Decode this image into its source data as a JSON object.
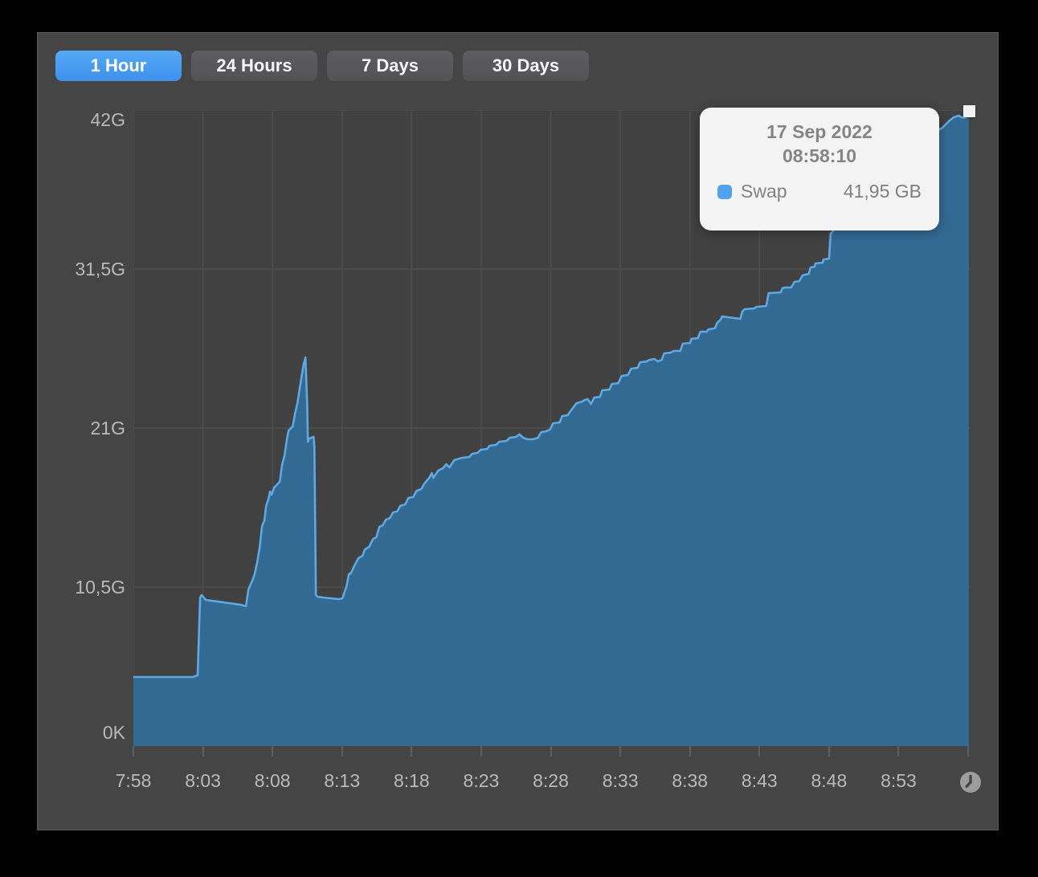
{
  "window": {
    "outer_background": "#000000",
    "panel_background": "#454545",
    "plot_background": "#414141",
    "gridline_color": "#4f4f4f",
    "axis_text_color": "#b9b9b9",
    "accent_blue": "#4da1f0",
    "marker_color": "#f2f2f2"
  },
  "tabs": [
    {
      "label": "1 Hour",
      "active": true
    },
    {
      "label": "24 Hours",
      "active": false
    },
    {
      "label": "7 Days",
      "active": false
    },
    {
      "label": "30 Days",
      "active": false
    }
  ],
  "tooltip": {
    "date": "17 Sep 2022",
    "time": "08:58:10",
    "series_label": "Swap",
    "value": "41,95 GB",
    "swatch_color": "#4fa3ee"
  },
  "footer": {
    "clock_icon": "clock-icon"
  },
  "chart_data": {
    "type": "area",
    "series": [
      {
        "name": "Swap",
        "unit": "GB",
        "line_color": "#5ea9e2",
        "fill_color": "#336a94",
        "points": [
          [
            0,
            4.56
          ],
          [
            2,
            4.56
          ],
          [
            4.28,
            4.56
          ],
          [
            4.62,
            4.67
          ],
          [
            4.8,
            9.81
          ],
          [
            4.91,
            9.97
          ],
          [
            5.2,
            9.65
          ],
          [
            6.01,
            9.55
          ],
          [
            6.88,
            9.44
          ],
          [
            7.75,
            9.33
          ],
          [
            8.09,
            9.23
          ],
          [
            8.27,
            10.34
          ],
          [
            8.44,
            10.71
          ],
          [
            8.55,
            10.92
          ],
          [
            8.73,
            11.4
          ],
          [
            8.9,
            12.14
          ],
          [
            9.08,
            13.1
          ],
          [
            9.25,
            14.53
          ],
          [
            9.42,
            14.9
          ],
          [
            9.54,
            15.85
          ],
          [
            9.71,
            16.33
          ],
          [
            9.83,
            16.81
          ],
          [
            9.94,
            16.6
          ],
          [
            10.12,
            17.08
          ],
          [
            10.35,
            17.29
          ],
          [
            10.52,
            17.45
          ],
          [
            10.69,
            18.56
          ],
          [
            10.87,
            19.2
          ],
          [
            11.04,
            20.31
          ],
          [
            11.16,
            20.84
          ],
          [
            11.33,
            21.0
          ],
          [
            11.45,
            21.1
          ],
          [
            11.62,
            21.95
          ],
          [
            11.79,
            22.64
          ],
          [
            11.97,
            23.7
          ],
          [
            12.14,
            24.66
          ],
          [
            12.25,
            25.24
          ],
          [
            12.37,
            25.66
          ],
          [
            12.49,
            22.7
          ],
          [
            12.54,
            20.1
          ],
          [
            12.66,
            20.31
          ],
          [
            12.95,
            20.42
          ],
          [
            13.01,
            19.78
          ],
          [
            13.12,
            9.97
          ],
          [
            13.24,
            9.86
          ],
          [
            13.64,
            9.81
          ],
          [
            14.22,
            9.76
          ],
          [
            14.74,
            9.7
          ],
          [
            15.03,
            9.76
          ],
          [
            15.2,
            10.23
          ],
          [
            15.32,
            10.55
          ],
          [
            15.49,
            11.35
          ],
          [
            15.66,
            11.45
          ],
          [
            15.9,
            11.93
          ],
          [
            16.18,
            12.41
          ],
          [
            16.47,
            12.57
          ],
          [
            16.65,
            12.99
          ],
          [
            16.94,
            13.15
          ],
          [
            17.23,
            13.68
          ],
          [
            17.46,
            13.79
          ],
          [
            17.69,
            14.48
          ],
          [
            17.92,
            14.58
          ],
          [
            18.15,
            14.95
          ],
          [
            18.44,
            15.06
          ],
          [
            18.67,
            15.43
          ],
          [
            18.96,
            15.49
          ],
          [
            19.19,
            15.86
          ],
          [
            19.54,
            15.96
          ],
          [
            19.77,
            16.39
          ],
          [
            20.12,
            16.44
          ],
          [
            20.35,
            16.86
          ],
          [
            20.69,
            16.97
          ],
          [
            20.92,
            17.34
          ],
          [
            21.27,
            17.71
          ],
          [
            21.45,
            18.03
          ],
          [
            21.56,
            17.71
          ],
          [
            21.91,
            18.19
          ],
          [
            22.25,
            18.35
          ],
          [
            22.49,
            18.61
          ],
          [
            22.72,
            18.4
          ],
          [
            23.06,
            18.88
          ],
          [
            23.64,
            19.04
          ],
          [
            24.16,
            19.09
          ],
          [
            24.34,
            19.3
          ],
          [
            24.74,
            19.36
          ],
          [
            24.97,
            19.57
          ],
          [
            25.43,
            19.62
          ],
          [
            25.61,
            19.84
          ],
          [
            26.07,
            19.89
          ],
          [
            26.3,
            20.1
          ],
          [
            26.82,
            20.15
          ],
          [
            27.05,
            20.36
          ],
          [
            27.51,
            20.42
          ],
          [
            27.75,
            20.58
          ],
          [
            28.03,
            20.36
          ],
          [
            28.32,
            20.26
          ],
          [
            28.73,
            20.26
          ],
          [
            29.08,
            20.36
          ],
          [
            29.31,
            20.73
          ],
          [
            29.65,
            20.79
          ],
          [
            29.94,
            20.89
          ],
          [
            30.17,
            21.32
          ],
          [
            30.64,
            21.37
          ],
          [
            30.81,
            21.79
          ],
          [
            31.21,
            21.85
          ],
          [
            31.5,
            22.22
          ],
          [
            31.85,
            22.64
          ],
          [
            32.25,
            22.75
          ],
          [
            32.43,
            22.85
          ],
          [
            32.66,
            22.91
          ],
          [
            32.89,
            22.59
          ],
          [
            33.12,
            23.01
          ],
          [
            33.53,
            23.06
          ],
          [
            33.7,
            23.49
          ],
          [
            34.22,
            23.54
          ],
          [
            34.39,
            23.91
          ],
          [
            34.86,
            23.97
          ],
          [
            35.09,
            24.44
          ],
          [
            35.55,
            24.5
          ],
          [
            35.78,
            24.92
          ],
          [
            36.24,
            24.97
          ],
          [
            36.42,
            25.34
          ],
          [
            36.88,
            25.4
          ],
          [
            37.11,
            25.5
          ],
          [
            37.46,
            25.56
          ],
          [
            37.69,
            25.4
          ],
          [
            37.98,
            25.5
          ],
          [
            38.15,
            25.93
          ],
          [
            38.61,
            25.98
          ],
          [
            38.84,
            26.09
          ],
          [
            39.31,
            26.09
          ],
          [
            39.48,
            26.57
          ],
          [
            40.0,
            26.62
          ],
          [
            40.12,
            26.89
          ],
          [
            40.58,
            26.94
          ],
          [
            40.75,
            27.36
          ],
          [
            41.21,
            27.36
          ],
          [
            41.33,
            27.52
          ],
          [
            41.79,
            27.58
          ],
          [
            41.97,
            27.95
          ],
          [
            42.25,
            28.21
          ],
          [
            42.31,
            28.37
          ],
          [
            43.64,
            28.21
          ],
          [
            43.76,
            28.69
          ],
          [
            43.93,
            28.85
          ],
          [
            44.62,
            28.9
          ],
          [
            44.8,
            29.01
          ],
          [
            45.49,
            29.06
          ],
          [
            45.66,
            29.91
          ],
          [
            46.53,
            29.96
          ],
          [
            46.65,
            30.23
          ],
          [
            46.82,
            30.28
          ],
          [
            47.28,
            30.28
          ],
          [
            47.51,
            30.65
          ],
          [
            47.86,
            30.7
          ],
          [
            48.09,
            31.07
          ],
          [
            48.27,
            31.13
          ],
          [
            48.55,
            31.18
          ],
          [
            48.67,
            31.6
          ],
          [
            48.96,
            31.66
          ],
          [
            49.02,
            31.87
          ],
          [
            49.54,
            31.92
          ],
          [
            49.6,
            32.13
          ],
          [
            50.0,
            32.19
          ],
          [
            50.12,
            33.83
          ],
          [
            50.35,
            34.1
          ],
          [
            51.1,
            35.0
          ],
          [
            52.25,
            36.22
          ],
          [
            53.41,
            37.33
          ],
          [
            54.57,
            38.34
          ],
          [
            55.72,
            39.24
          ],
          [
            56.88,
            40.09
          ],
          [
            57.75,
            40.62
          ],
          [
            58.15,
            40.83
          ],
          [
            58.61,
            41.26
          ],
          [
            58.96,
            41.52
          ],
          [
            59.31,
            41.63
          ],
          [
            59.54,
            41.52
          ],
          [
            59.77,
            41.47
          ],
          [
            60.06,
            41.95
          ]
        ]
      }
    ],
    "x_axis": {
      "tick_labels": [
        "7:58",
        "8:03",
        "8:08",
        "8:13",
        "8:18",
        "8:23",
        "8:28",
        "8:33",
        "8:38",
        "8:43",
        "8:48",
        "8:53"
      ],
      "tick_interval_minutes": 5,
      "range_minutes": [
        0,
        60.17
      ],
      "grid": true
    },
    "y_axis": {
      "tick_labels_top_to_bottom": [
        "42G",
        "31,5G",
        "21G",
        "10,5G",
        "0K"
      ],
      "range_gb": [
        0,
        42
      ],
      "grid": true
    },
    "cursor_point": {
      "date": "17 Sep 2022",
      "time": "08:58:10",
      "value_gb": 41.95
    }
  }
}
